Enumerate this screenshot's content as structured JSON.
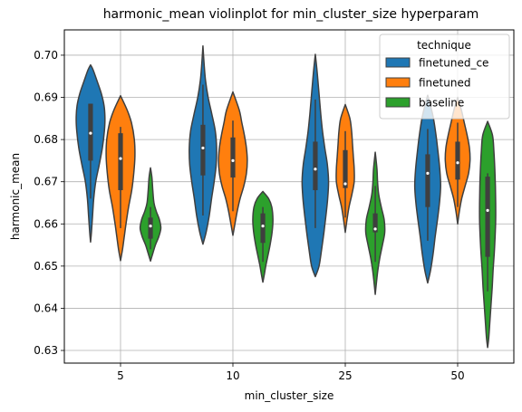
{
  "chart_data": {
    "type": "violin",
    "title": "harmonic_mean violinplot for min_cluster_size hyperparam",
    "xlabel": "min_cluster_size",
    "ylabel": "harmonic_mean",
    "categories": [
      "5",
      "10",
      "25",
      "50"
    ],
    "ylim": [
      0.627,
      0.706
    ],
    "yticks": [
      0.63,
      0.64,
      0.65,
      0.66,
      0.67,
      0.68,
      0.69,
      0.7
    ],
    "ytick_labels": [
      "0.63",
      "0.64",
      "0.65",
      "0.66",
      "0.67",
      "0.68",
      "0.69",
      "0.70"
    ],
    "grid": true,
    "legend": {
      "title": "technique",
      "placement": "top-right"
    },
    "series": [
      {
        "name": "finetuned_ce",
        "color": "#1f77b4",
        "stats": [
          {
            "min": 0.6557,
            "max": 0.6977,
            "q1": 0.675,
            "median": 0.6815,
            "q3": 0.6885,
            "whisker_low": 0.666,
            "whisker_high": 0.6885,
            "shape": [
              [
                0.6557,
                0.0
              ],
              [
                0.658,
                0.06
              ],
              [
                0.662,
                0.14
              ],
              [
                0.666,
                0.22
              ],
              [
                0.67,
                0.36
              ],
              [
                0.674,
                0.6
              ],
              [
                0.678,
                0.82
              ],
              [
                0.682,
                0.96
              ],
              [
                0.685,
                1.0
              ],
              [
                0.688,
                0.94
              ],
              [
                0.691,
                0.74
              ],
              [
                0.694,
                0.44
              ],
              [
                0.6965,
                0.18
              ],
              [
                0.6977,
                0.0
              ]
            ]
          },
          {
            "min": 0.6552,
            "max": 0.7022,
            "q1": 0.6715,
            "median": 0.678,
            "q3": 0.6835,
            "whisker_low": 0.662,
            "whisker_high": 0.693,
            "shape": [
              [
                0.6552,
                0.0
              ],
              [
                0.658,
                0.22
              ],
              [
                0.662,
                0.44
              ],
              [
                0.666,
                0.6
              ],
              [
                0.67,
                0.78
              ],
              [
                0.674,
                0.92
              ],
              [
                0.678,
                0.95
              ],
              [
                0.682,
                0.86
              ],
              [
                0.686,
                0.62
              ],
              [
                0.69,
                0.36
              ],
              [
                0.694,
                0.18
              ],
              [
                0.698,
                0.08
              ],
              [
                0.7022,
                0.0
              ]
            ]
          },
          {
            "min": 0.6475,
            "max": 0.7002,
            "q1": 0.668,
            "median": 0.673,
            "q3": 0.6795,
            "whisker_low": 0.659,
            "whisker_high": 0.6895,
            "shape": [
              [
                0.6475,
                0.0
              ],
              [
                0.65,
                0.26
              ],
              [
                0.654,
                0.44
              ],
              [
                0.658,
                0.6
              ],
              [
                0.662,
                0.74
              ],
              [
                0.666,
                0.86
              ],
              [
                0.67,
                0.92
              ],
              [
                0.674,
                0.84
              ],
              [
                0.678,
                0.66
              ],
              [
                0.682,
                0.5
              ],
              [
                0.686,
                0.38
              ],
              [
                0.69,
                0.28
              ],
              [
                0.694,
                0.18
              ],
              [
                0.697,
                0.1
              ],
              [
                0.7002,
                0.0
              ]
            ]
          },
          {
            "min": 0.646,
            "max": 0.6905,
            "q1": 0.664,
            "median": 0.672,
            "q3": 0.6765,
            "whisker_low": 0.656,
            "whisker_high": 0.6825,
            "shape": [
              [
                0.646,
                0.0
              ],
              [
                0.649,
                0.2
              ],
              [
                0.653,
                0.38
              ],
              [
                0.657,
                0.52
              ],
              [
                0.661,
                0.68
              ],
              [
                0.665,
                0.82
              ],
              [
                0.669,
                0.9
              ],
              [
                0.673,
                0.84
              ],
              [
                0.677,
                0.72
              ],
              [
                0.681,
                0.58
              ],
              [
                0.685,
                0.4
              ],
              [
                0.688,
                0.2
              ],
              [
                0.6905,
                0.0
              ]
            ]
          }
        ]
      },
      {
        "name": "finetuned",
        "color": "#ff7f0e",
        "stats": [
          {
            "min": 0.6513,
            "max": 0.6904,
            "q1": 0.668,
            "median": 0.6755,
            "q3": 0.6815,
            "whisker_low": 0.659,
            "whisker_high": 0.683,
            "shape": [
              [
                0.6513,
                0.0
              ],
              [
                0.654,
                0.14
              ],
              [
                0.657,
                0.26
              ],
              [
                0.66,
                0.38
              ],
              [
                0.664,
                0.56
              ],
              [
                0.668,
                0.78
              ],
              [
                0.672,
                0.92
              ],
              [
                0.676,
                1.0
              ],
              [
                0.68,
                0.96
              ],
              [
                0.684,
                0.76
              ],
              [
                0.687,
                0.46
              ],
              [
                0.6904,
                0.0
              ]
            ]
          },
          {
            "min": 0.6573,
            "max": 0.6913,
            "q1": 0.671,
            "median": 0.675,
            "q3": 0.6805,
            "whisker_low": 0.663,
            "whisker_high": 0.6845,
            "shape": [
              [
                0.6573,
                0.0
              ],
              [
                0.66,
                0.14
              ],
              [
                0.663,
                0.3
              ],
              [
                0.666,
                0.5
              ],
              [
                0.669,
                0.76
              ],
              [
                0.672,
                0.94
              ],
              [
                0.675,
                1.0
              ],
              [
                0.678,
                0.94
              ],
              [
                0.681,
                0.8
              ],
              [
                0.684,
                0.62
              ],
              [
                0.687,
                0.44
              ],
              [
                0.6913,
                0.0
              ]
            ]
          },
          {
            "min": 0.658,
            "max": 0.6883,
            "q1": 0.6685,
            "median": 0.6695,
            "q3": 0.6775,
            "whisker_low": 0.6615,
            "whisker_high": 0.682,
            "shape": [
              [
                0.658,
                0.0
              ],
              [
                0.661,
                0.12
              ],
              [
                0.664,
                0.26
              ],
              [
                0.667,
                0.46
              ],
              [
                0.67,
                0.62
              ],
              [
                0.673,
                0.62
              ],
              [
                0.676,
                0.56
              ],
              [
                0.679,
                0.5
              ],
              [
                0.682,
                0.44
              ],
              [
                0.685,
                0.32
              ],
              [
                0.6883,
                0.0
              ]
            ]
          },
          {
            "min": 0.66,
            "max": 0.69,
            "q1": 0.6705,
            "median": 0.6745,
            "q3": 0.6795,
            "whisker_low": 0.664,
            "whisker_high": 0.684,
            "shape": [
              [
                0.66,
                0.0
              ],
              [
                0.663,
                0.12
              ],
              [
                0.666,
                0.28
              ],
              [
                0.669,
                0.52
              ],
              [
                0.672,
                0.76
              ],
              [
                0.675,
                0.86
              ],
              [
                0.678,
                0.82
              ],
              [
                0.681,
                0.66
              ],
              [
                0.684,
                0.46
              ],
              [
                0.687,
                0.26
              ],
              [
                0.69,
                0.0
              ]
            ]
          }
        ]
      },
      {
        "name": "baseline",
        "color": "#2ca02c",
        "stats": [
          {
            "min": 0.6512,
            "max": 0.6733,
            "q1": 0.6565,
            "median": 0.6595,
            "q3": 0.6615,
            "whisker_low": 0.654,
            "whisker_high": 0.664,
            "shape": [
              [
                0.6512,
                0.0
              ],
              [
                0.653,
                0.16
              ],
              [
                0.655,
                0.34
              ],
              [
                0.657,
                0.58
              ],
              [
                0.659,
                0.72
              ],
              [
                0.661,
                0.62
              ],
              [
                0.663,
                0.4
              ],
              [
                0.665,
                0.24
              ],
              [
                0.668,
                0.16
              ],
              [
                0.671,
                0.1
              ],
              [
                0.6733,
                0.0
              ]
            ]
          },
          {
            "min": 0.6462,
            "max": 0.6677,
            "q1": 0.6555,
            "median": 0.6595,
            "q3": 0.6625,
            "whisker_low": 0.651,
            "whisker_high": 0.664,
            "shape": [
              [
                0.6462,
                0.0
              ],
              [
                0.648,
                0.1
              ],
              [
                0.65,
                0.2
              ],
              [
                0.652,
                0.32
              ],
              [
                0.655,
                0.5
              ],
              [
                0.658,
                0.64
              ],
              [
                0.661,
                0.7
              ],
              [
                0.664,
                0.62
              ],
              [
                0.666,
                0.4
              ],
              [
                0.6677,
                0.0
              ]
            ]
          },
          {
            "min": 0.6433,
            "max": 0.677,
            "q1": 0.658,
            "median": 0.6588,
            "q3": 0.6625,
            "whisker_low": 0.651,
            "whisker_high": 0.669,
            "shape": [
              [
                0.6433,
                0.0
              ],
              [
                0.646,
                0.08
              ],
              [
                0.649,
                0.18
              ],
              [
                0.652,
                0.32
              ],
              [
                0.655,
                0.5
              ],
              [
                0.658,
                0.66
              ],
              [
                0.661,
                0.62
              ],
              [
                0.664,
                0.42
              ],
              [
                0.667,
                0.24
              ],
              [
                0.67,
                0.16
              ],
              [
                0.673,
                0.12
              ],
              [
                0.677,
                0.0
              ]
            ]
          },
          {
            "min": 0.6307,
            "max": 0.6843,
            "q1": 0.6522,
            "median": 0.6632,
            "q3": 0.6712,
            "whisker_low": 0.644,
            "whisker_high": 0.672,
            "shape": [
              [
                0.6307,
                0.0
              ],
              [
                0.633,
                0.08
              ],
              [
                0.637,
                0.16
              ],
              [
                0.641,
                0.24
              ],
              [
                0.645,
                0.32
              ],
              [
                0.649,
                0.38
              ],
              [
                0.653,
                0.46
              ],
              [
                0.657,
                0.52
              ],
              [
                0.661,
                0.56
              ],
              [
                0.665,
                0.56
              ],
              [
                0.669,
                0.54
              ],
              [
                0.673,
                0.5
              ],
              [
                0.677,
                0.44
              ],
              [
                0.681,
                0.34
              ],
              [
                0.6843,
                0.0
              ]
            ]
          }
        ]
      }
    ]
  }
}
